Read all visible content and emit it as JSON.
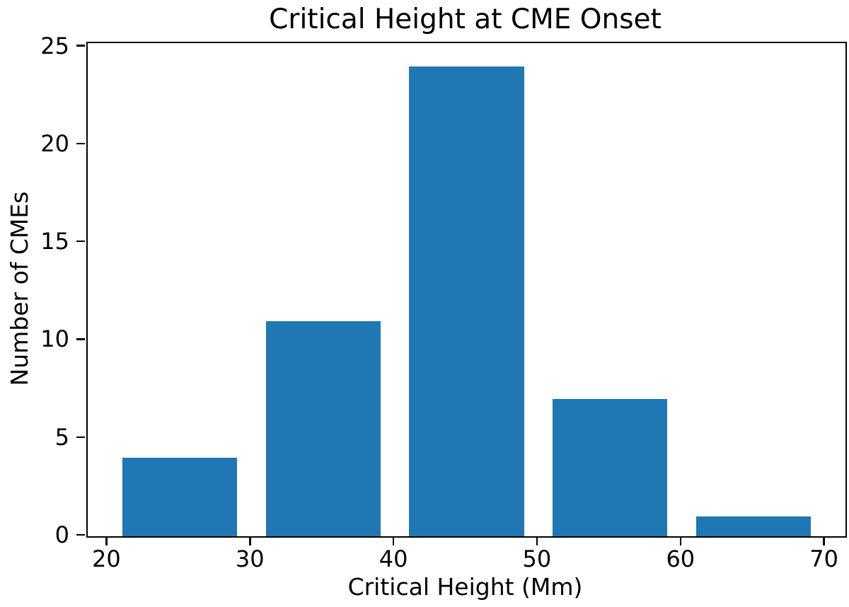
{
  "chart_data": {
    "type": "bar",
    "title": "Critical Height at CME Onset",
    "xlabel": "Critical Height (Mm)",
    "ylabel": "Number of CMEs",
    "bars": [
      {
        "from": 21,
        "to": 29,
        "count": 4
      },
      {
        "from": 31,
        "to": 39,
        "count": 11
      },
      {
        "from": 41,
        "to": 49,
        "count": 24
      },
      {
        "from": 51,
        "to": 59,
        "count": 7
      },
      {
        "from": 61,
        "to": 69,
        "count": 1
      }
    ],
    "categories": [
      "21-29",
      "31-39",
      "41-49",
      "51-59",
      "61-69"
    ],
    "values": [
      4,
      11,
      24,
      7,
      1
    ],
    "xticks": [
      20,
      30,
      40,
      50,
      60,
      70
    ],
    "yticks": [
      0,
      5,
      10,
      15,
      20,
      25
    ],
    "xlim": [
      18.6,
      71.4
    ],
    "ylim": [
      0,
      25.2
    ],
    "bar_color": "#1f77b4",
    "axis_color": "#000000",
    "background_color": "#ffffff",
    "grid": false,
    "legend_position": "none"
  }
}
